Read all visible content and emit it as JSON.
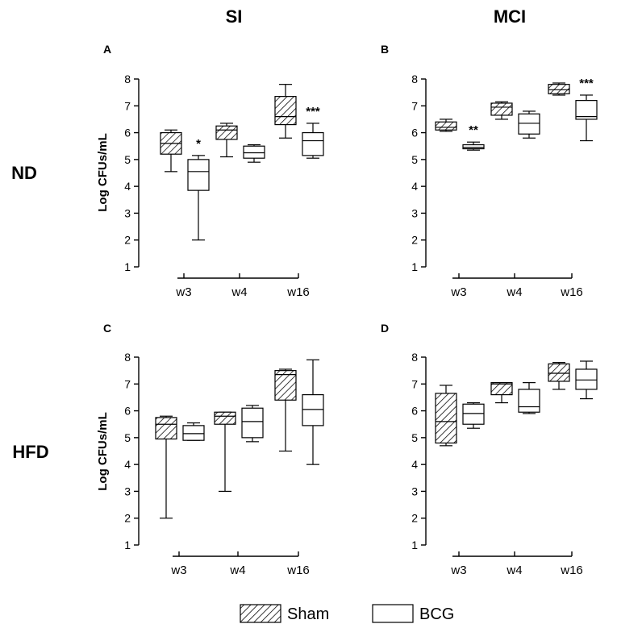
{
  "column_titles": [
    "SI",
    "MCI"
  ],
  "row_titles": [
    "ND",
    "HFD"
  ],
  "legend": [
    {
      "label": "Sham",
      "pattern": "hatched"
    },
    {
      "label": "BCG",
      "pattern": "open"
    }
  ],
  "colors": {
    "line": "#000000",
    "background": "#ffffff"
  },
  "chart_data": [
    {
      "panel": "A",
      "type": "box",
      "group": "ND",
      "tissue": "SI",
      "ylabel": "Log CFUs/mL",
      "ylim": [
        1,
        8
      ],
      "yticks": [
        1,
        2,
        3,
        4,
        5,
        6,
        7,
        8
      ],
      "categories": [
        "w3",
        "w4",
        "w16"
      ],
      "series": [
        {
          "name": "Sham",
          "boxes": [
            {
              "min": 4.55,
              "q1": 5.2,
              "median": 5.6,
              "q3": 6.0,
              "max": 6.1
            },
            {
              "min": 5.1,
              "q1": 5.75,
              "median": 6.1,
              "q3": 6.25,
              "max": 6.35
            },
            {
              "min": 5.8,
              "q1": 6.3,
              "median": 6.6,
              "q3": 7.35,
              "max": 7.8
            }
          ]
        },
        {
          "name": "BCG",
          "boxes": [
            {
              "min": 2.0,
              "q1": 3.85,
              "median": 4.55,
              "q3": 5.0,
              "max": 5.15
            },
            {
              "min": 4.9,
              "q1": 5.05,
              "median": 5.25,
              "q3": 5.5,
              "max": 5.55
            },
            {
              "min": 5.05,
              "q1": 5.15,
              "median": 5.7,
              "q3": 6.0,
              "max": 6.35
            }
          ]
        }
      ],
      "annotations": [
        {
          "category": "w3",
          "series": "BCG",
          "text": "*"
        },
        {
          "category": "w16",
          "series": "BCG",
          "text": "***"
        }
      ]
    },
    {
      "panel": "B",
      "type": "box",
      "group": "ND",
      "tissue": "MCI",
      "ylabel": "",
      "ylim": [
        1,
        8
      ],
      "yticks": [
        1,
        2,
        3,
        4,
        5,
        6,
        7,
        8
      ],
      "categories": [
        "w3",
        "w4",
        "w16"
      ],
      "series": [
        {
          "name": "Sham",
          "boxes": [
            {
              "min": 6.05,
              "q1": 6.1,
              "median": 6.2,
              "q3": 6.4,
              "max": 6.5
            },
            {
              "min": 6.5,
              "q1": 6.65,
              "median": 6.95,
              "q3": 7.1,
              "max": 7.15
            },
            {
              "min": 7.4,
              "q1": 7.45,
              "median": 7.6,
              "q3": 7.8,
              "max": 7.85
            }
          ]
        },
        {
          "name": "BCG",
          "boxes": [
            {
              "min": 5.35,
              "q1": 5.4,
              "median": 5.45,
              "q3": 5.55,
              "max": 5.65
            },
            {
              "min": 5.8,
              "q1": 5.95,
              "median": 6.35,
              "q3": 6.7,
              "max": 6.8
            },
            {
              "min": 5.7,
              "q1": 6.5,
              "median": 6.6,
              "q3": 7.2,
              "max": 7.4
            }
          ]
        }
      ],
      "annotations": [
        {
          "category": "w3",
          "series": "BCG",
          "text": "**"
        },
        {
          "category": "w16",
          "series": "BCG",
          "text": "***"
        }
      ]
    },
    {
      "panel": "C",
      "type": "box",
      "group": "HFD",
      "tissue": "SI",
      "ylabel": "Log CFUs/mL",
      "ylim": [
        1,
        8
      ],
      "yticks": [
        1,
        2,
        3,
        4,
        5,
        6,
        7,
        8
      ],
      "categories": [
        "w3",
        "w4",
        "w16"
      ],
      "series": [
        {
          "name": "Sham",
          "boxes": [
            {
              "min": 2.0,
              "q1": 4.95,
              "median": 5.5,
              "q3": 5.75,
              "max": 5.8
            },
            {
              "min": 3.0,
              "q1": 5.5,
              "median": 5.8,
              "q3": 5.95,
              "max": 5.95
            },
            {
              "min": 4.5,
              "q1": 6.4,
              "median": 7.35,
              "q3": 7.5,
              "max": 7.55
            }
          ]
        },
        {
          "name": "BCG",
          "boxes": [
            {
              "min": 4.9,
              "q1": 4.9,
              "median": 5.15,
              "q3": 5.45,
              "max": 5.55
            },
            {
              "min": 4.85,
              "q1": 5.0,
              "median": 5.6,
              "q3": 6.1,
              "max": 6.2
            },
            {
              "min": 4.0,
              "q1": 5.45,
              "median": 6.05,
              "q3": 6.6,
              "max": 7.9
            }
          ]
        }
      ],
      "annotations": []
    },
    {
      "panel": "D",
      "type": "box",
      "group": "HFD",
      "tissue": "MCI",
      "ylabel": "",
      "ylim": [
        1,
        8
      ],
      "yticks": [
        1,
        2,
        3,
        4,
        5,
        6,
        7,
        8
      ],
      "categories": [
        "w3",
        "w4",
        "w16"
      ],
      "series": [
        {
          "name": "Sham",
          "boxes": [
            {
              "min": 4.7,
              "q1": 4.8,
              "median": 5.6,
              "q3": 6.65,
              "max": 6.95
            },
            {
              "min": 6.3,
              "q1": 6.6,
              "median": 7.0,
              "q3": 7.05,
              "max": 7.05
            },
            {
              "min": 6.8,
              "q1": 7.1,
              "median": 7.4,
              "q3": 7.75,
              "max": 7.8
            }
          ]
        },
        {
          "name": "BCG",
          "boxes": [
            {
              "min": 5.35,
              "q1": 5.5,
              "median": 5.9,
              "q3": 6.25,
              "max": 6.3
            },
            {
              "min": 5.9,
              "q1": 5.95,
              "median": 6.15,
              "q3": 6.8,
              "max": 7.05
            },
            {
              "min": 6.45,
              "q1": 6.8,
              "median": 7.15,
              "q3": 7.55,
              "max": 7.85
            }
          ]
        }
      ],
      "annotations": []
    }
  ]
}
